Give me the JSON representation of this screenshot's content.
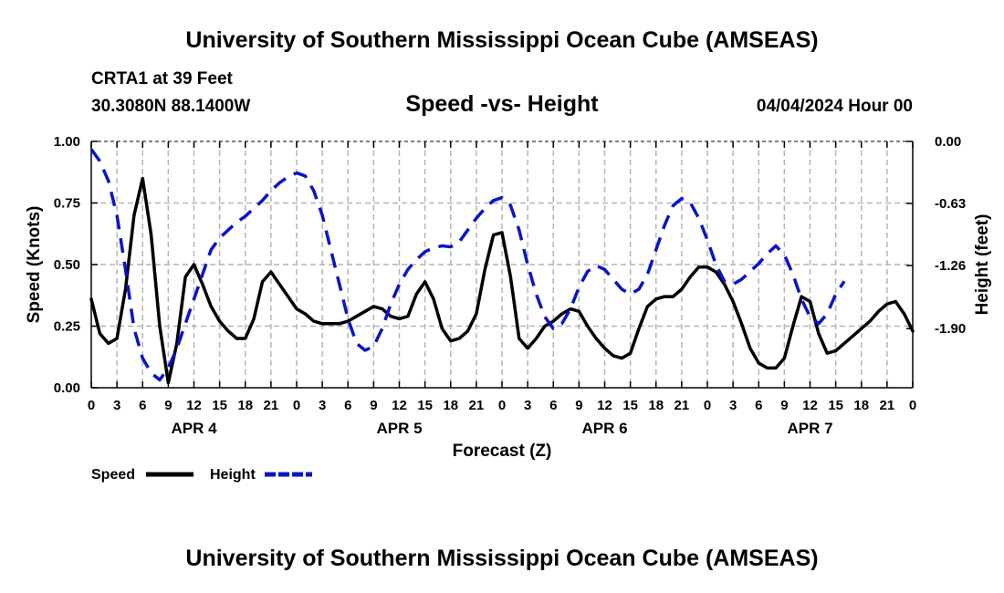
{
  "header": {
    "title": "University of Southern Mississippi Ocean Cube (AMSEAS)",
    "station": "CRTA1 at 39 Feet",
    "coords": "30.3080N  88.1400W",
    "date": "04/04/2024 Hour 00"
  },
  "footer": {
    "title": "University of Southern Mississippi Ocean Cube (AMSEAS)"
  },
  "chart_data": {
    "type": "line",
    "title": "Speed -vs- Height",
    "xlabel": "Forecast (Z)",
    "ylabel": "Speed (Knots)",
    "y2label": "Height (feet)",
    "xlim": [
      0,
      96
    ],
    "ylim": [
      0,
      1
    ],
    "y2lim": [
      -2.5,
      0
    ],
    "x_ticks": [
      0,
      3,
      6,
      9,
      12,
      15,
      18,
      21,
      24,
      27,
      30,
      33,
      36,
      39,
      42,
      45,
      48,
      51,
      54,
      57,
      60,
      63,
      66,
      69,
      72,
      75,
      78,
      81,
      84,
      87,
      90,
      93,
      96
    ],
    "x_tick_labels": [
      "0",
      "3",
      "6",
      "9",
      "12",
      "15",
      "18",
      "21",
      "0",
      "3",
      "6",
      "9",
      "12",
      "15",
      "18",
      "21",
      "0",
      "3",
      "6",
      "9",
      "12",
      "15",
      "18",
      "21",
      "0",
      "3",
      "6",
      "9",
      "12",
      "15",
      "18",
      "21",
      "0"
    ],
    "day_labels": [
      {
        "x": 12,
        "label": "APR 4"
      },
      {
        "x": 36,
        "label": "APR 5"
      },
      {
        "x": 60,
        "label": "APR 6"
      },
      {
        "x": 84,
        "label": "APR 7"
      }
    ],
    "y_ticks": [
      0,
      0.25,
      0.5,
      0.75,
      1.0
    ],
    "y_tick_labels": [
      "0.00",
      "0.25",
      "0.50",
      "0.75",
      "1.00"
    ],
    "y2_ticks": [
      0,
      -0.63,
      -1.26,
      -1.9
    ],
    "y2_tick_labels": [
      "0.00",
      "-0.63",
      "-1.26",
      "-1.90"
    ],
    "grid": true,
    "legend": {
      "position": "bottom-left",
      "entries": [
        "Speed",
        "Height"
      ]
    },
    "series": [
      {
        "name": "Speed",
        "axis": "left",
        "color": "#000000",
        "style": "solid",
        "points": [
          [
            0,
            0.36
          ],
          [
            1,
            0.22
          ],
          [
            2,
            0.18
          ],
          [
            3,
            0.2
          ],
          [
            4,
            0.4
          ],
          [
            5,
            0.7
          ],
          [
            6,
            0.85
          ],
          [
            7,
            0.62
          ],
          [
            8,
            0.25
          ],
          [
            9,
            0.02
          ],
          [
            10,
            0.18
          ],
          [
            11,
            0.45
          ],
          [
            12,
            0.5
          ],
          [
            13,
            0.42
          ],
          [
            14,
            0.33
          ],
          [
            15,
            0.27
          ],
          [
            16,
            0.23
          ],
          [
            17,
            0.2
          ],
          [
            18,
            0.2
          ],
          [
            19,
            0.28
          ],
          [
            20,
            0.43
          ],
          [
            21,
            0.47
          ],
          [
            22,
            0.42
          ],
          [
            23,
            0.37
          ],
          [
            24,
            0.32
          ],
          [
            25,
            0.3
          ],
          [
            26,
            0.27
          ],
          [
            27,
            0.26
          ],
          [
            28,
            0.26
          ],
          [
            29,
            0.26
          ],
          [
            30,
            0.27
          ],
          [
            31,
            0.29
          ],
          [
            32,
            0.31
          ],
          [
            33,
            0.33
          ],
          [
            34,
            0.32
          ],
          [
            35,
            0.29
          ],
          [
            36,
            0.28
          ],
          [
            37,
            0.29
          ],
          [
            38,
            0.38
          ],
          [
            39,
            0.43
          ],
          [
            40,
            0.36
          ],
          [
            41,
            0.24
          ],
          [
            42,
            0.19
          ],
          [
            43,
            0.2
          ],
          [
            44,
            0.23
          ],
          [
            45,
            0.3
          ],
          [
            46,
            0.48
          ],
          [
            47,
            0.62
          ],
          [
            48,
            0.63
          ],
          [
            49,
            0.45
          ],
          [
            50,
            0.2
          ],
          [
            51,
            0.16
          ],
          [
            52,
            0.2
          ],
          [
            53,
            0.25
          ],
          [
            54,
            0.27
          ],
          [
            55,
            0.3
          ],
          [
            56,
            0.32
          ],
          [
            57,
            0.31
          ],
          [
            58,
            0.25
          ],
          [
            59,
            0.2
          ],
          [
            60,
            0.16
          ],
          [
            61,
            0.13
          ],
          [
            62,
            0.12
          ],
          [
            63,
            0.14
          ],
          [
            64,
            0.24
          ],
          [
            65,
            0.33
          ],
          [
            66,
            0.36
          ],
          [
            67,
            0.37
          ],
          [
            68,
            0.37
          ],
          [
            69,
            0.4
          ],
          [
            70,
            0.45
          ],
          [
            71,
            0.49
          ],
          [
            72,
            0.49
          ],
          [
            73,
            0.47
          ],
          [
            74,
            0.42
          ],
          [
            75,
            0.35
          ],
          [
            76,
            0.26
          ],
          [
            77,
            0.16
          ],
          [
            78,
            0.1
          ],
          [
            79,
            0.08
          ],
          [
            80,
            0.08
          ],
          [
            81,
            0.12
          ],
          [
            82,
            0.25
          ],
          [
            83,
            0.37
          ],
          [
            84,
            0.35
          ],
          [
            85,
            0.22
          ],
          [
            86,
            0.14
          ],
          [
            87,
            0.15
          ],
          [
            88,
            0.18
          ],
          [
            89,
            0.21
          ],
          [
            90,
            0.24
          ],
          [
            91,
            0.27
          ],
          [
            92,
            0.31
          ],
          [
            93,
            0.34
          ],
          [
            94,
            0.35
          ],
          [
            95,
            0.3
          ],
          [
            96,
            0.23
          ]
        ]
      },
      {
        "name": "Height",
        "axis": "right",
        "color": "#0a14c8",
        "style": "dashed",
        "points": [
          [
            0,
            -0.08
          ],
          [
            1,
            -0.2
          ],
          [
            2,
            -0.4
          ],
          [
            3,
            -0.75
          ],
          [
            4,
            -1.3
          ],
          [
            5,
            -1.9
          ],
          [
            6,
            -2.2
          ],
          [
            7,
            -2.35
          ],
          [
            8,
            -2.42
          ],
          [
            9,
            -2.3
          ],
          [
            10,
            -2.1
          ],
          [
            11,
            -1.85
          ],
          [
            12,
            -1.6
          ],
          [
            13,
            -1.35
          ],
          [
            14,
            -1.1
          ],
          [
            15,
            -0.98
          ],
          [
            16,
            -0.9
          ],
          [
            17,
            -0.82
          ],
          [
            18,
            -0.76
          ],
          [
            19,
            -0.68
          ],
          [
            20,
            -0.6
          ],
          [
            21,
            -0.5
          ],
          [
            22,
            -0.42
          ],
          [
            23,
            -0.36
          ],
          [
            24,
            -0.32
          ],
          [
            25,
            -0.35
          ],
          [
            26,
            -0.5
          ],
          [
            27,
            -0.75
          ],
          [
            28,
            -1.1
          ],
          [
            29,
            -1.45
          ],
          [
            30,
            -1.8
          ],
          [
            31,
            -2.05
          ],
          [
            32,
            -2.12
          ],
          [
            33,
            -2.08
          ],
          [
            34,
            -1.9
          ],
          [
            35,
            -1.65
          ],
          [
            36,
            -1.45
          ],
          [
            37,
            -1.3
          ],
          [
            38,
            -1.2
          ],
          [
            39,
            -1.12
          ],
          [
            40,
            -1.08
          ],
          [
            41,
            -1.06
          ],
          [
            42,
            -1.07
          ],
          [
            43,
            -1.02
          ],
          [
            44,
            -0.9
          ],
          [
            45,
            -0.78
          ],
          [
            46,
            -0.68
          ],
          [
            47,
            -0.6
          ],
          [
            48,
            -0.57
          ],
          [
            49,
            -0.65
          ],
          [
            50,
            -0.9
          ],
          [
            51,
            -1.25
          ],
          [
            52,
            -1.55
          ],
          [
            53,
            -1.78
          ],
          [
            54,
            -1.9
          ],
          [
            55,
            -1.85
          ],
          [
            56,
            -1.7
          ],
          [
            57,
            -1.48
          ],
          [
            58,
            -1.32
          ],
          [
            59,
            -1.26
          ],
          [
            60,
            -1.3
          ],
          [
            61,
            -1.4
          ],
          [
            62,
            -1.5
          ],
          [
            63,
            -1.55
          ],
          [
            64,
            -1.5
          ],
          [
            65,
            -1.35
          ],
          [
            66,
            -1.1
          ],
          [
            67,
            -0.85
          ],
          [
            68,
            -0.65
          ],
          [
            69,
            -0.58
          ],
          [
            70,
            -0.62
          ],
          [
            71,
            -0.78
          ],
          [
            72,
            -1.0
          ],
          [
            73,
            -1.25
          ],
          [
            74,
            -1.42
          ],
          [
            75,
            -1.45
          ],
          [
            76,
            -1.4
          ],
          [
            77,
            -1.32
          ],
          [
            78,
            -1.24
          ],
          [
            79,
            -1.14
          ],
          [
            80,
            -1.06
          ],
          [
            81,
            -1.15
          ],
          [
            82,
            -1.35
          ],
          [
            83,
            -1.6
          ],
          [
            84,
            -1.78
          ],
          [
            85,
            -1.85
          ],
          [
            86,
            -1.75
          ],
          [
            87,
            -1.55
          ],
          [
            88,
            -1.42
          ]
        ]
      }
    ]
  }
}
